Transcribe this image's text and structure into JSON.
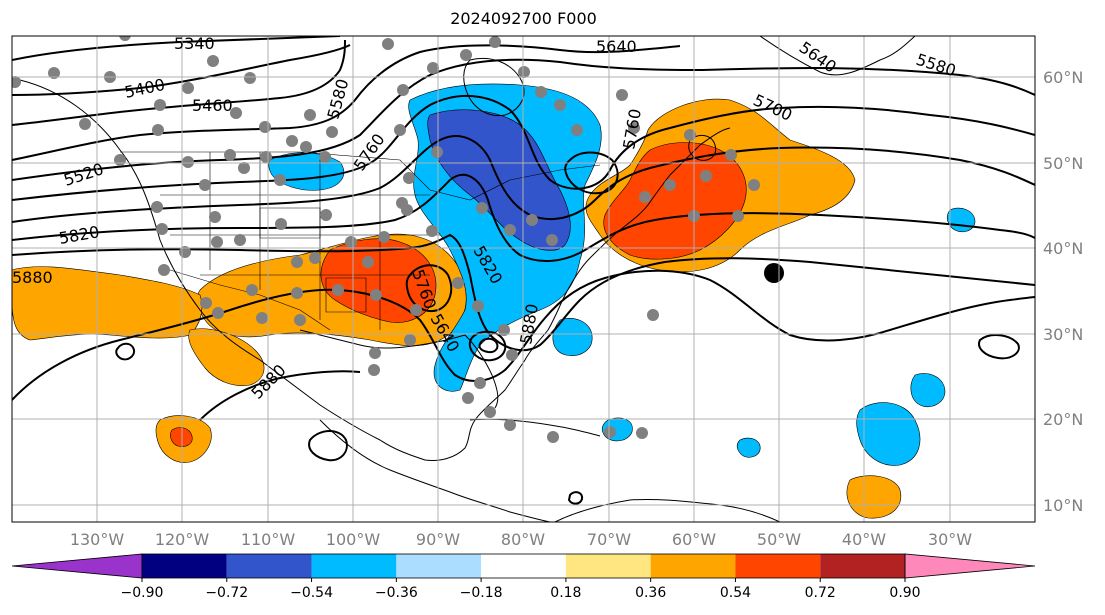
{
  "title": "2024092700 F000",
  "lat_labels": [
    "60°N",
    "50°N",
    "40°N",
    "30°N",
    "20°N",
    "10°N"
  ],
  "lon_labels": [
    "130°W",
    "120°W",
    "110°W",
    "100°W",
    "90°W",
    "80°W",
    "70°W",
    "60°W",
    "50°W",
    "40°W",
    "30°W"
  ],
  "contour_labels": [
    "5340",
    "5400",
    "5460",
    "5520",
    "5580",
    "5640",
    "5640",
    "5580",
    "5700",
    "5760",
    "5820",
    "5820",
    "5760",
    "5880",
    "5880",
    "5880",
    "5760",
    "5640"
  ],
  "colorbar": {
    "tick_labels": [
      "−0.90",
      "−0.72",
      "−0.54",
      "−0.36",
      "−0.18",
      "0.18",
      "0.36",
      "0.54",
      "0.72",
      "0.90"
    ],
    "colors": [
      "#9933cc",
      "#000080",
      "#3355cc",
      "#00bbff",
      "#aaddff",
      "#ffffff",
      "#ffe680",
      "#ffa500",
      "#ff4500",
      "#b22222",
      "#ff88bb"
    ]
  },
  "colors": {
    "pos_weak": "#ffa500",
    "pos_strong": "#ff4500",
    "pos_extreme": "#b22222",
    "neg_weak": "#00bbff",
    "neg_strong": "#3355cc",
    "dot": "#808080",
    "grid": "#b0b0b0"
  }
}
